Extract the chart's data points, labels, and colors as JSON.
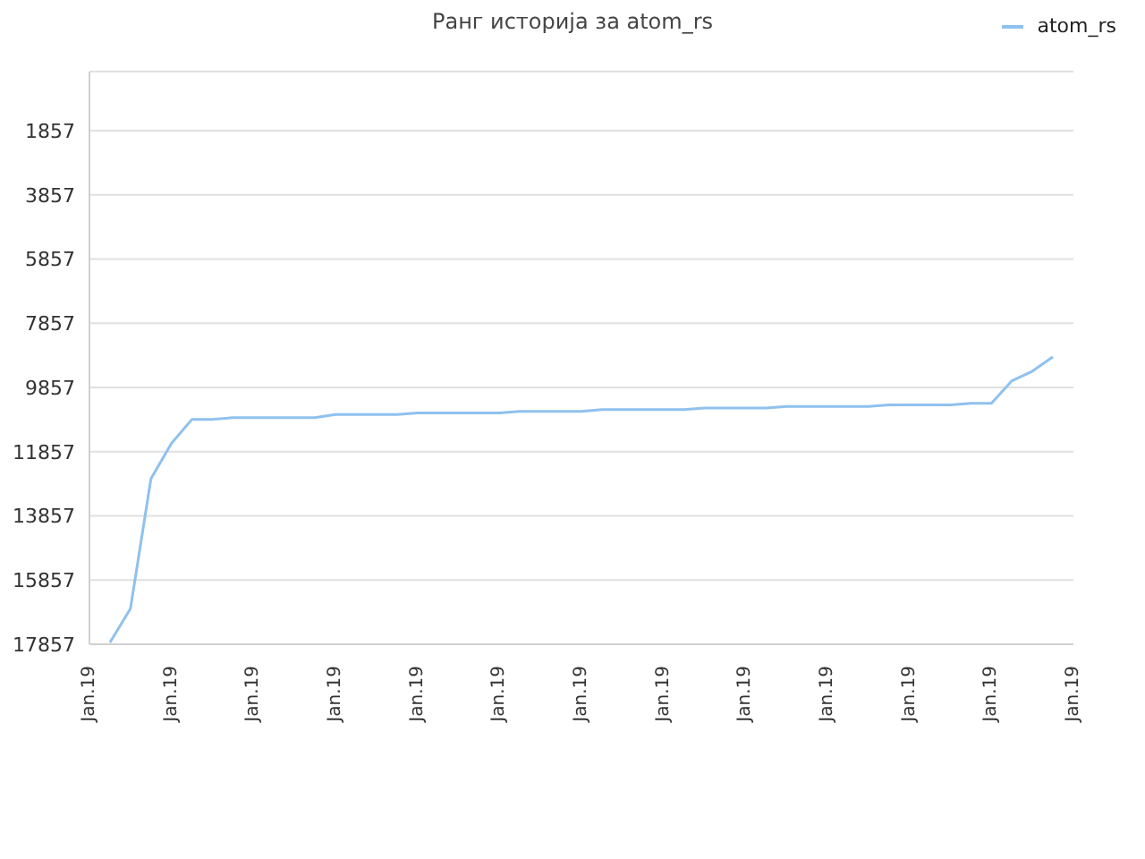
{
  "chart_data": {
    "type": "line",
    "title": "Ранг историја за atom_rs",
    "categories": [
      "Jan.19",
      null,
      null,
      null,
      "Jan.19",
      null,
      null,
      null,
      "Jan.19",
      null,
      null,
      null,
      "Jan.19",
      null,
      null,
      null,
      "Jan.19",
      null,
      null,
      null,
      "Jan.19",
      null,
      null,
      null,
      "Jan.19",
      null,
      null,
      null,
      "Jan.19",
      null,
      null,
      null,
      "Jan.19",
      null,
      null,
      null,
      "Jan.19",
      null,
      null,
      null,
      "Jan.19",
      null,
      null,
      null,
      "Jan.19",
      null,
      null,
      null,
      "Jan.19"
    ],
    "series": [
      {
        "name": "atom_rs",
        "color": "#8fc1ee",
        "values": [
          null,
          17800,
          16750,
          12700,
          11600,
          10850,
          10850,
          10800,
          10800,
          10800,
          10800,
          10800,
          10700,
          10700,
          10700,
          10700,
          10650,
          10650,
          10650,
          10650,
          10650,
          10600,
          10600,
          10600,
          10600,
          10550,
          10550,
          10550,
          10550,
          10550,
          10500,
          10500,
          10500,
          10500,
          10450,
          10450,
          10450,
          10450,
          10450,
          10400,
          10400,
          10400,
          10400,
          10350,
          10350,
          9650,
          9350,
          8900,
          null
        ]
      }
    ],
    "ylim": [
      17857,
      17
    ],
    "yticks": [
      1857,
      3857,
      5857,
      7857,
      9857,
      11857,
      13857,
      15857,
      17857
    ],
    "grid": "y",
    "legend": "top right",
    "marker": "none",
    "line_style": "solid"
  }
}
